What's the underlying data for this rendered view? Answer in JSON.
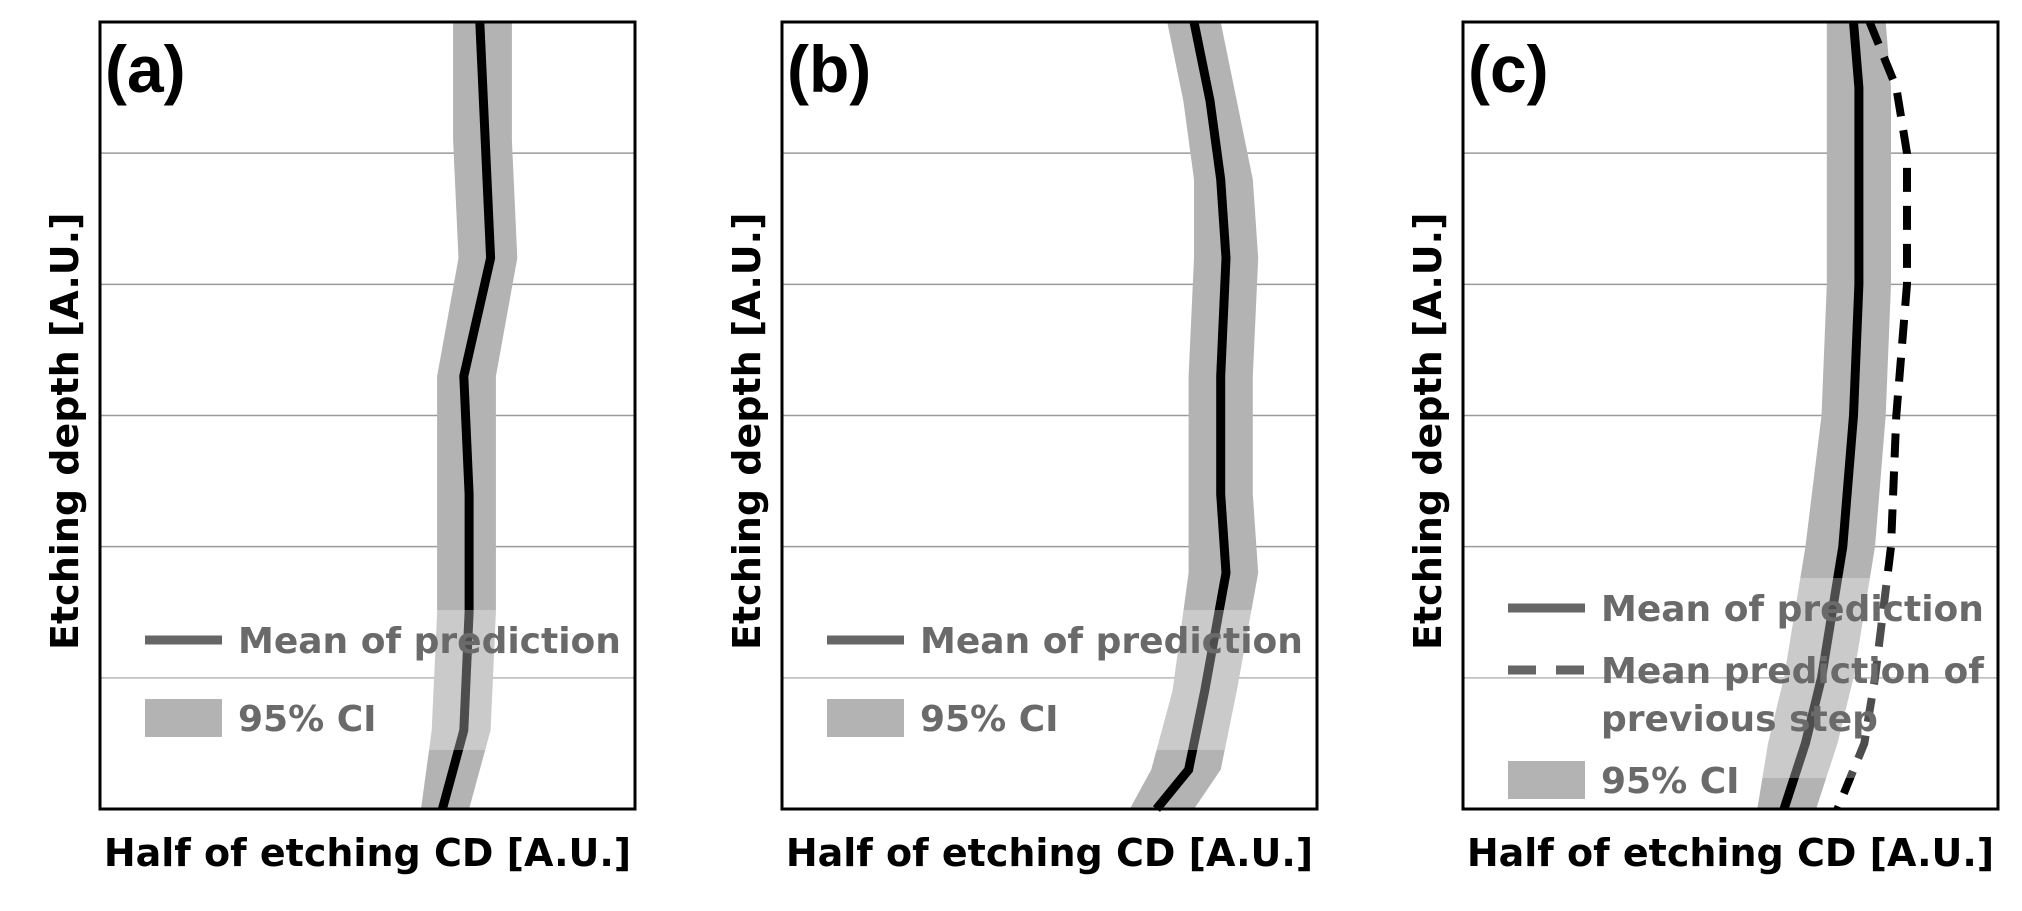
{
  "chart_data": [
    {
      "type": "line",
      "panel": "(a)",
      "xlabel": "Half of etching CD [A.U.]",
      "ylabel": "Etching depth [A.U.]",
      "xlim": [
        0,
        1
      ],
      "ylim": [
        0,
        6
      ],
      "y_inverted": true,
      "grid": "horizontal",
      "x_ticks_shown": false,
      "y_ticks_shown": false,
      "legend_position": "lower-left",
      "legend": [
        {
          "label": "Mean of prediction",
          "style": "solid"
        },
        {
          "label": "95% CI",
          "style": "band"
        }
      ],
      "depth": [
        0,
        0.9,
        1.8,
        2.7,
        3.6,
        4.5,
        5.4,
        6.0
      ],
      "series": [
        {
          "name": "Mean of prediction",
          "style": "solid",
          "values": [
            0.71,
            0.72,
            0.73,
            0.68,
            0.69,
            0.69,
            0.68,
            0.64
          ]
        },
        {
          "name": "95% CI",
          "style": "band",
          "lower": [
            0.66,
            0.66,
            0.67,
            0.63,
            0.63,
            0.63,
            0.62,
            0.6
          ],
          "upper": [
            0.77,
            0.77,
            0.78,
            0.74,
            0.74,
            0.74,
            0.73,
            0.69
          ]
        }
      ]
    },
    {
      "type": "line",
      "panel": "(b)",
      "xlabel": "Half of etching CD [A.U.]",
      "ylabel": "Etching depth [A.U.]",
      "xlim": [
        0,
        1
      ],
      "ylim": [
        0,
        6
      ],
      "y_inverted": true,
      "grid": "horizontal",
      "x_ticks_shown": false,
      "y_ticks_shown": false,
      "legend_position": "lower-left",
      "legend": [
        {
          "label": "Mean of prediction",
          "style": "solid"
        },
        {
          "label": "95% CI",
          "style": "band"
        }
      ],
      "depth": [
        0,
        0.6,
        1.2,
        1.8,
        2.7,
        3.6,
        4.2,
        5.1,
        5.7,
        6.0
      ],
      "series": [
        {
          "name": "Mean of prediction",
          "style": "solid",
          "values": [
            0.77,
            0.8,
            0.82,
            0.83,
            0.82,
            0.82,
            0.83,
            0.79,
            0.76,
            0.7
          ]
        },
        {
          "name": "95% CI",
          "style": "band",
          "lower": [
            0.72,
            0.75,
            0.77,
            0.77,
            0.76,
            0.76,
            0.76,
            0.73,
            0.69,
            0.65
          ],
          "upper": [
            0.82,
            0.85,
            0.88,
            0.89,
            0.88,
            0.88,
            0.89,
            0.85,
            0.82,
            0.77
          ]
        }
      ]
    },
    {
      "type": "line",
      "panel": "(c)",
      "xlabel": "Half of etching CD [A.U.]",
      "ylabel": "Etching depth [A.U.]",
      "xlim": [
        0,
        1
      ],
      "ylim": [
        0,
        6
      ],
      "y_inverted": true,
      "grid": "horizontal",
      "x_ticks_shown": false,
      "y_ticks_shown": false,
      "legend_position": "lower-left",
      "legend": [
        {
          "label_lines": [
            "Mean of prediction"
          ],
          "style": "solid"
        },
        {
          "label_lines": [
            "Mean prediction of",
            "previous step"
          ],
          "style": "dashed"
        },
        {
          "label_lines": [
            "95% CI"
          ],
          "style": "band"
        }
      ],
      "depth": [
        0,
        0.5,
        1.0,
        2.0,
        3.0,
        4.0,
        5.0,
        5.5,
        6.0
      ],
      "series": [
        {
          "name": "Mean of prediction",
          "style": "solid",
          "values": [
            0.73,
            0.74,
            0.74,
            0.74,
            0.73,
            0.71,
            0.67,
            0.64,
            0.6
          ]
        },
        {
          "name": "95% CI",
          "style": "band",
          "lower": [
            0.68,
            0.68,
            0.68,
            0.68,
            0.67,
            0.64,
            0.6,
            0.57,
            0.55
          ]
        },
        {
          "name": "95% CI upper",
          "style": "band-upper",
          "values": [
            0.79,
            0.8,
            0.8,
            0.8,
            0.79,
            0.77,
            0.73,
            0.7,
            0.66
          ]
        },
        {
          "name": "Mean prediction of previous step",
          "style": "dashed",
          "values": [
            0.76,
            0.81,
            0.83,
            0.83,
            0.81,
            0.8,
            0.77,
            0.75,
            0.7
          ]
        }
      ]
    }
  ]
}
